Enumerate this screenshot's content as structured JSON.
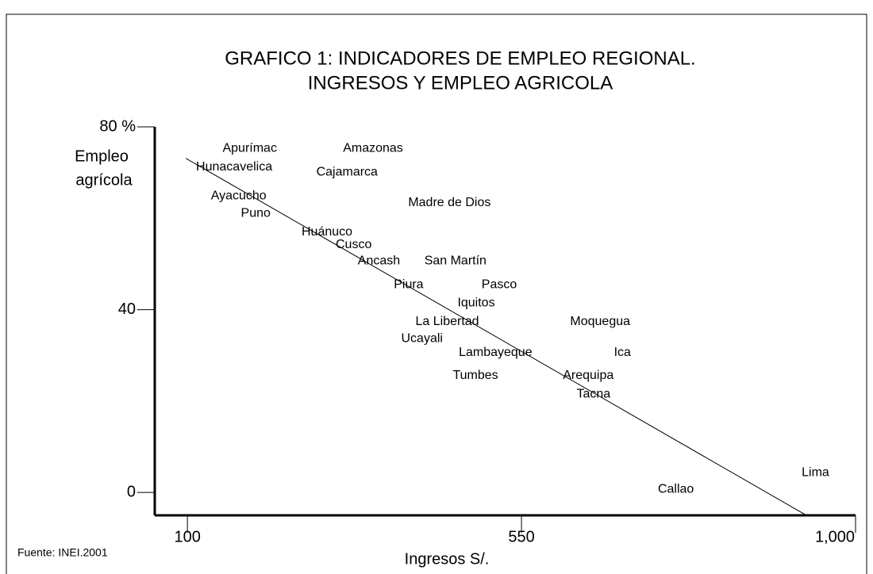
{
  "chart_data": {
    "type": "scatter",
    "title": [
      "GRAFICO 1: INDICADORES DE EMPLEO REGIONAL.",
      "INGRESOS Y EMPLEO AGRICOLA"
    ],
    "x_label": "Ingresos S/.",
    "y_label": [
      "Empleo",
      "agrícola"
    ],
    "source": "Fuente: INEI.2001",
    "color": "#000000",
    "labels": [
      "Apurímac",
      "Amazonas",
      "Hunacavelica",
      "Cajamarca",
      "Ayacucho",
      "Madre de Dios",
      "Puno",
      "Huánuco",
      "Cusco",
      "Ancash",
      "San Martín",
      "Piura",
      "Pasco",
      "Iquitos",
      "La Libertad",
      "Moquegua",
      "Ucayali",
      "Lambayeque",
      "Ica",
      "Tumbes",
      "Arequipa",
      "Tacna",
      "Lima",
      "Callao"
    ],
    "x": [
      184,
      350,
      163,
      315,
      169,
      453,
      192,
      288,
      324,
      358,
      461,
      398,
      520,
      489,
      450,
      656,
      416,
      515,
      686,
      488,
      640,
      647,
      946,
      758
    ],
    "values": [
      75.3,
      75.3,
      71.2,
      70.1,
      64.9,
      63.4,
      61.0,
      57.0,
      54.2,
      50.6,
      50.6,
      45.4,
      45.4,
      41.4,
      37.4,
      37.4,
      33.6,
      30.6,
      30.6,
      25.6,
      25.6,
      21.5,
      4.3,
      0.7
    ],
    "trend": {
      "x": [
        98,
        936
      ],
      "values": [
        73.1,
        -5.2
      ]
    },
    "xlim": [
      56,
      1000
    ],
    "ylim": [
      -5,
      80
    ],
    "xticks": [
      100,
      550,
      {
        "value": 1000,
        "label": "1,000"
      }
    ],
    "yticks": [
      0,
      40,
      {
        "value": 80,
        "label": "80 %"
      }
    ]
  }
}
